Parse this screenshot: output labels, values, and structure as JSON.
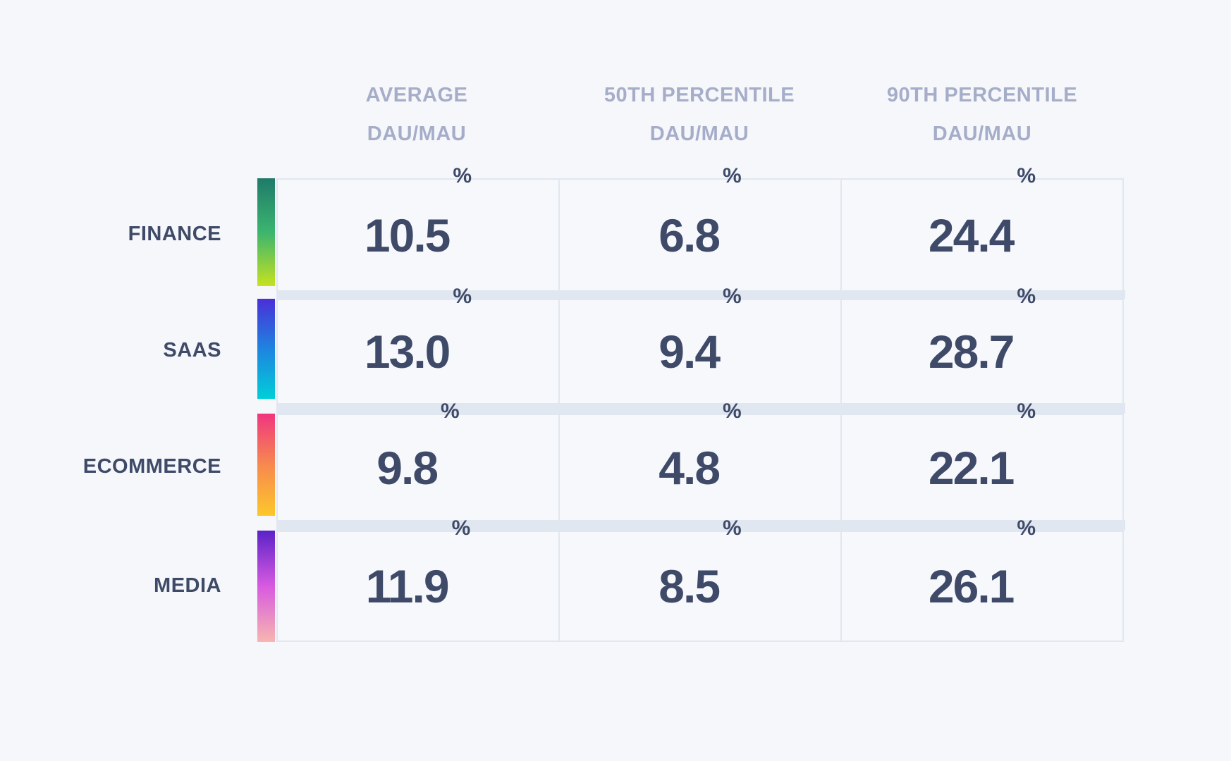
{
  "columns": [
    {
      "line1": "AVERAGE",
      "line2": "DAU/MAU"
    },
    {
      "line1": "50TH PERCENTILE",
      "line2": "DAU/MAU"
    },
    {
      "line1": "90TH PERCENTILE",
      "line2": "DAU/MAU"
    }
  ],
  "rows": [
    {
      "label": "FINANCE",
      "values": [
        "10.5",
        "6.8",
        "24.4"
      ],
      "colors": [
        "#1f7a6a",
        "#3bb56f",
        "#c5e21f"
      ]
    },
    {
      "label": "SAAS",
      "values": [
        "13.0",
        "9.4",
        "28.7"
      ],
      "colors": [
        "#4a2fd8",
        "#1e84e0",
        "#00cfd8"
      ]
    },
    {
      "label": "ECOMMERCE",
      "values": [
        "9.8",
        "4.8",
        "22.1"
      ],
      "colors": [
        "#f0357f",
        "#f7894f",
        "#fdc72a"
      ]
    },
    {
      "label": "MEDIA",
      "values": [
        "11.9",
        "8.5",
        "26.1"
      ],
      "colors": [
        "#5a22c8",
        "#d85ae0",
        "#f7b6b0"
      ]
    }
  ],
  "unit": "%"
}
